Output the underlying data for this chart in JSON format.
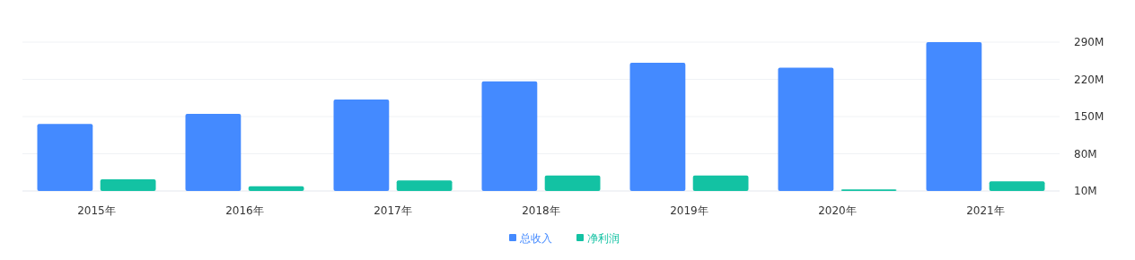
{
  "chart_data": {
    "type": "bar",
    "categories": [
      "2015年",
      "2016年",
      "2017年",
      "2018年",
      "2019年",
      "2020年",
      "2021年"
    ],
    "series": [
      {
        "name": "总收入",
        "color": "#448aff",
        "values": [
          136,
          155,
          182,
          216,
          251,
          242,
          290
        ]
      },
      {
        "name": "净利润",
        "color": "#13c2a3",
        "values": [
          32,
          19,
          30,
          39,
          39,
          13,
          28
        ]
      }
    ],
    "ylim": [
      10,
      290
    ],
    "yticks": [
      {
        "value": 10,
        "label": "10M"
      },
      {
        "value": 80,
        "label": "80M"
      },
      {
        "value": 150,
        "label": "150M"
      },
      {
        "value": 220,
        "label": "220M"
      },
      {
        "value": 290,
        "label": "290M"
      }
    ],
    "grid": "y",
    "legend": "bottom"
  }
}
